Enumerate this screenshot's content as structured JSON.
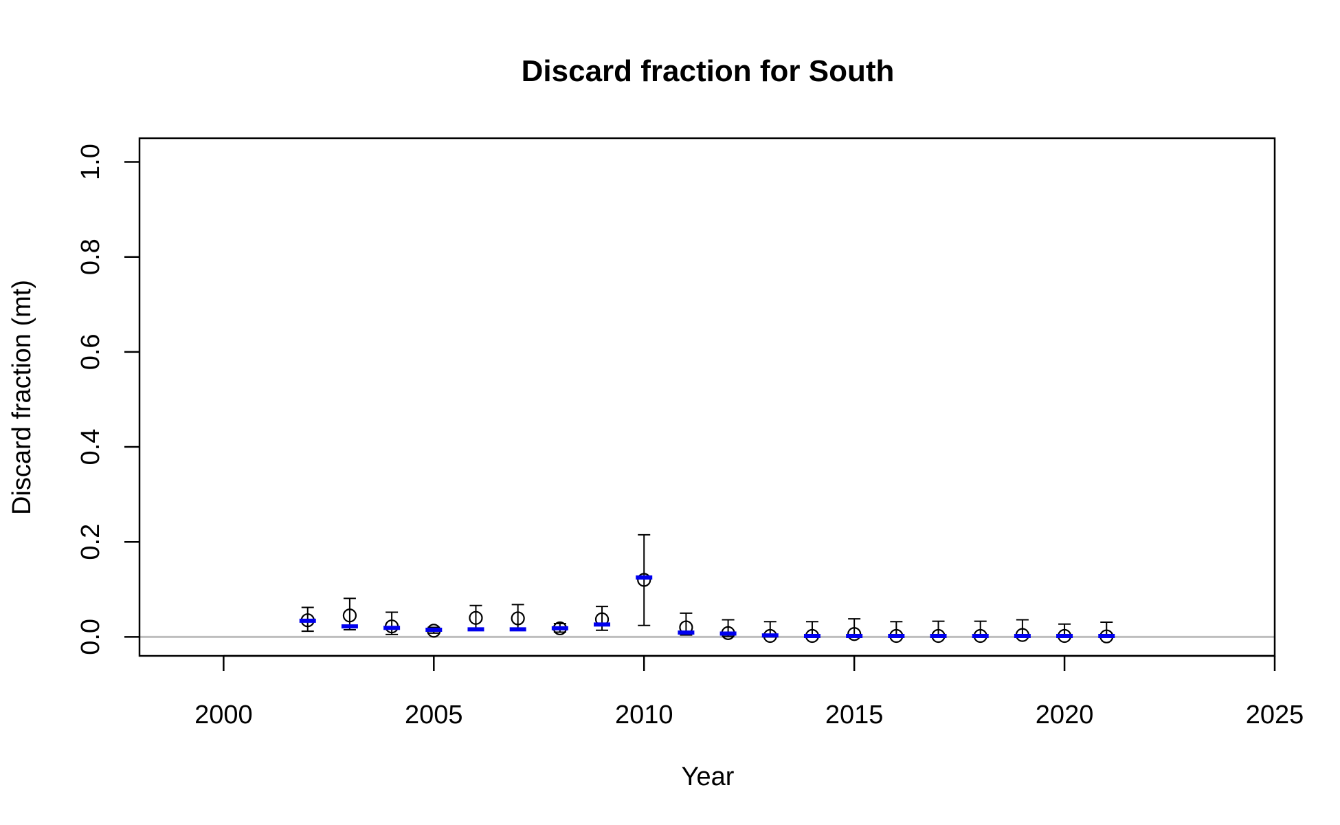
{
  "chart_data": {
    "type": "scatter",
    "title": "Discard fraction for South",
    "xlabel": "Year",
    "ylabel": "Discard fraction (mt)",
    "xlim": [
      1998,
      2025
    ],
    "ylim": [
      -0.04,
      1.05
    ],
    "x_ticks": [
      2000,
      2005,
      2010,
      2015,
      2020,
      2025
    ],
    "x_tick_labels": [
      "2000",
      "2005",
      "2010",
      "2015",
      "2020",
      "2025"
    ],
    "y_ticks": [
      0.0,
      0.2,
      0.4,
      0.6,
      0.8,
      1.0
    ],
    "y_tick_labels": [
      "0.0",
      "0.2",
      "0.4",
      "0.6",
      "0.8",
      "1.0"
    ],
    "reference_line_y": 0,
    "grid": false,
    "colors": {
      "observed": "#000000",
      "expected": "#0000ee",
      "reference": "#bebebe"
    },
    "series": [
      {
        "marker": "open-circle-with-error-bars",
        "x": [
          2002,
          2003,
          2004,
          2005,
          2006,
          2007,
          2008,
          2009,
          2010,
          2011,
          2012,
          2013,
          2014,
          2015,
          2016,
          2017,
          2018,
          2019,
          2020,
          2021
        ],
        "y": [
          0.035,
          0.045,
          0.022,
          0.013,
          0.04,
          0.039,
          0.018,
          0.037,
          0.12,
          0.02,
          0.008,
          0.002,
          0.002,
          0.006,
          0.002,
          0.002,
          0.002,
          0.004,
          0.002,
          0.001
        ],
        "lower": [
          0.012,
          0.015,
          0.005,
          0.008,
          0.016,
          0.014,
          0.01,
          0.014,
          0.024,
          0.004,
          0.001,
          0.0,
          0.0,
          0.0,
          0.0,
          0.0,
          0.0,
          0.0,
          0.0,
          0.0
        ],
        "upper": [
          0.062,
          0.081,
          0.052,
          0.02,
          0.066,
          0.068,
          0.028,
          0.064,
          0.215,
          0.05,
          0.036,
          0.032,
          0.032,
          0.038,
          0.032,
          0.033,
          0.033,
          0.036,
          0.027,
          0.031
        ]
      },
      {
        "marker": "blue-dash",
        "x": [
          2002,
          2003,
          2004,
          2005,
          2006,
          2007,
          2008,
          2009,
          2010,
          2011,
          2012,
          2013,
          2014,
          2015,
          2016,
          2017,
          2018,
          2019,
          2020,
          2021
        ],
        "y": [
          0.034,
          0.022,
          0.019,
          0.015,
          0.016,
          0.016,
          0.018,
          0.026,
          0.125,
          0.009,
          0.007,
          0.003,
          0.002,
          0.002,
          0.002,
          0.002,
          0.002,
          0.002,
          0.002,
          0.002
        ]
      }
    ]
  }
}
